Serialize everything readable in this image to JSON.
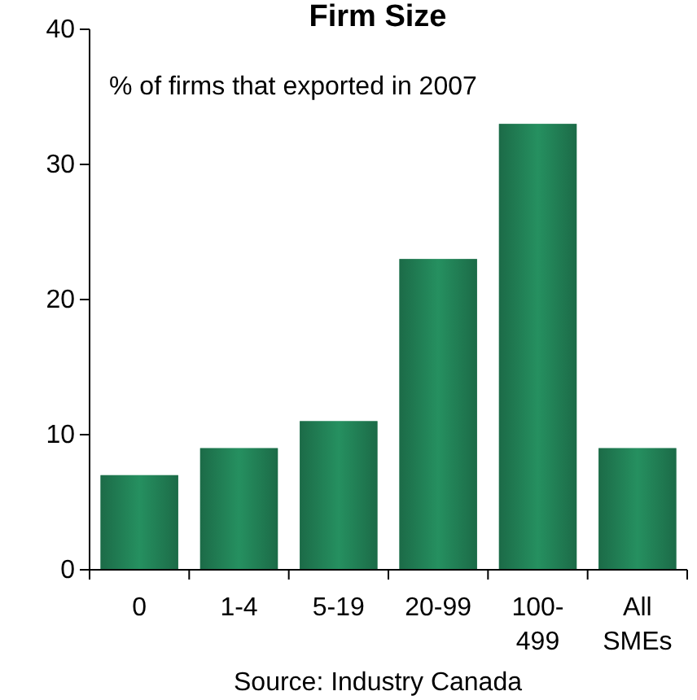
{
  "chart_data": {
    "type": "bar",
    "title": "Firm Size",
    "subtitle": "% of firms that exported in 2007",
    "categories": [
      "0",
      "1-4",
      "5-19",
      "20-99",
      "100-499",
      "All SMEs"
    ],
    "values": [
      7,
      9,
      11,
      23,
      33,
      9
    ],
    "color": "#23875a",
    "ylim": [
      0,
      40
    ],
    "yticks": [
      0,
      10,
      20,
      30,
      40
    ],
    "grid": false,
    "annotations": [
      "Source: Industry Canada"
    ]
  }
}
